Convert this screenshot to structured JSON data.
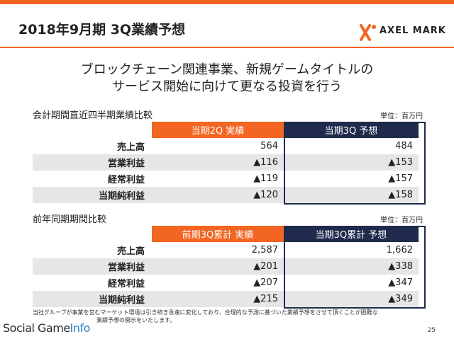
{
  "slide": {
    "title": "2018年9月期 3Q業績予想",
    "logo_text": "AXEL MARK",
    "headline_line1": "ブロックチェーン関連事業、新規ゲームタイトルの",
    "headline_line2": "サービス開始に向けて更なる投資を行う",
    "page_number": "25",
    "footnote_line1": "当社グループが事業を営むマーケット環境は引き続き急速に変化しており、合理的な予測に基づいた業績予想をさせて頂くことが困難な",
    "footnote_line2": "業績予想の開示をいたします。",
    "watermark_text1": "Social Game",
    "watermark_text2": "Info"
  },
  "quarter_table": {
    "label": "会計期間直近四半期業績比較",
    "unit": "単位：百万円",
    "col1_header": "当期2Q 実績",
    "col2_header": "当期3Q 予想",
    "rows": [
      {
        "label": "売上高",
        "v1": "564",
        "v2": "484"
      },
      {
        "label": "営業利益",
        "v1": "▲116",
        "v2": "▲153"
      },
      {
        "label": "経常利益",
        "v1": "▲119",
        "v2": "▲157"
      },
      {
        "label": "当期純利益",
        "v1": "▲120",
        "v2": "▲158"
      }
    ]
  },
  "yoy_table": {
    "label": "前年同期期間比較",
    "unit": "単位：百万円",
    "col1_header": "前期3Q累計 実績",
    "col2_header": "当期3Q累計 予想",
    "rows": [
      {
        "label": "売上高",
        "v1": "2,587",
        "v2": "1,662"
      },
      {
        "label": "営業利益",
        "v1": "▲201",
        "v2": "▲338"
      },
      {
        "label": "経常利益",
        "v1": "▲207",
        "v2": "▲347"
      },
      {
        "label": "当期純利益",
        "v1": "▲215",
        "v2": "▲349"
      }
    ]
  },
  "colors": {
    "accent": "#f26522",
    "navy": "#1f2a4d"
  }
}
